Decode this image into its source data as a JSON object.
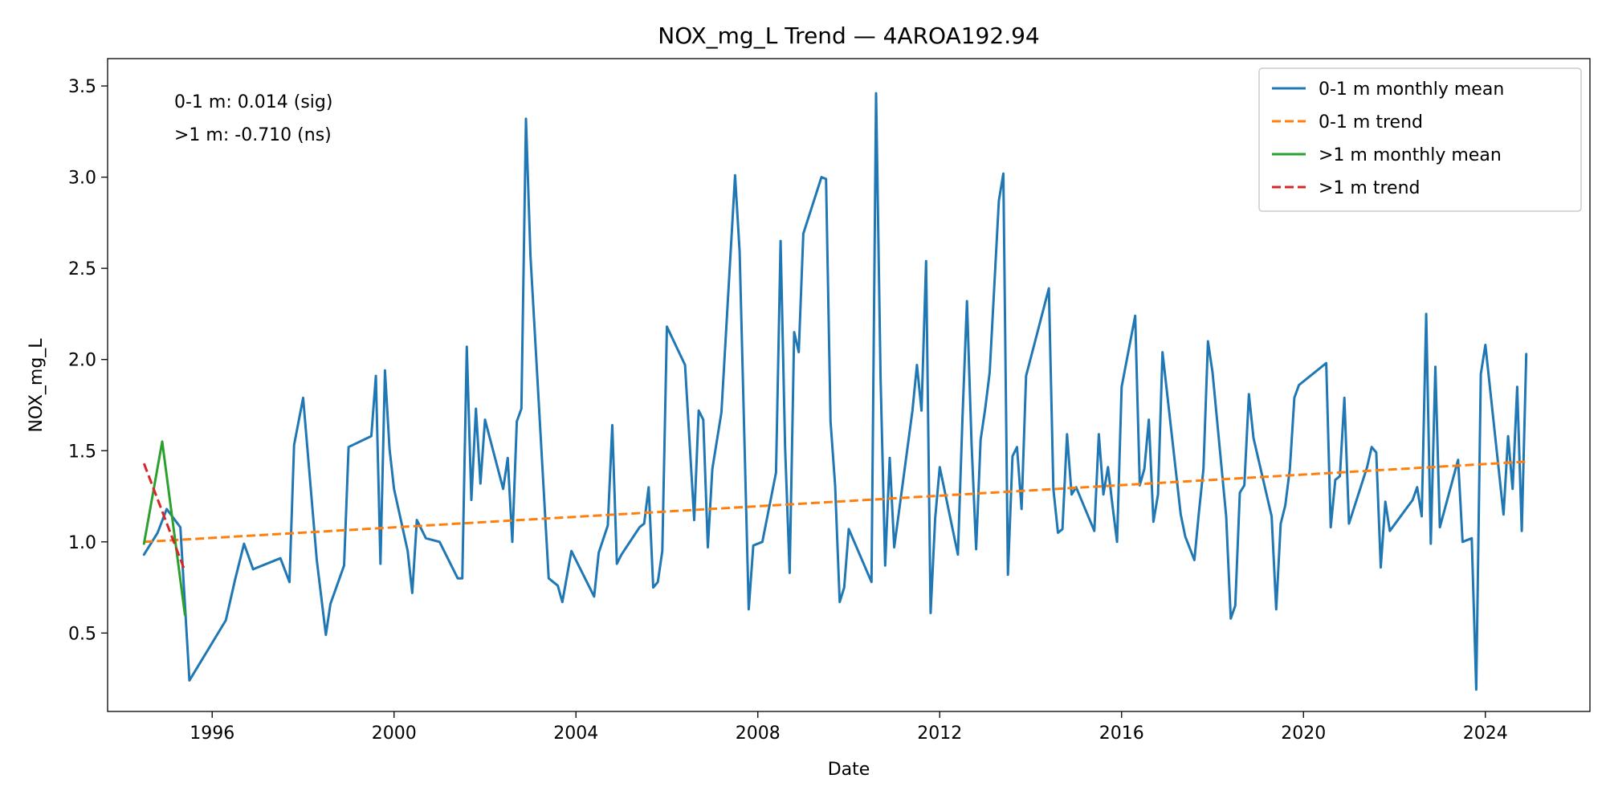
{
  "chart_data": {
    "type": "line",
    "title": "NOX_mg_L Trend — 4AROA192.94",
    "xlabel": "Date",
    "ylabel": "NOX_mg_L",
    "xlim": [
      1993.7,
      2026.3
    ],
    "ylim": [
      0.07,
      3.65
    ],
    "x_ticks": [
      1996,
      2000,
      2004,
      2008,
      2012,
      2016,
      2020,
      2024
    ],
    "y_ticks": [
      0.5,
      1.0,
      1.5,
      2.0,
      2.5,
      3.0,
      3.5
    ],
    "y_tick_labels": [
      "0.5",
      "1.0",
      "1.5",
      "2.0",
      "2.5",
      "3.0",
      "3.5"
    ],
    "grid": false,
    "legend_position": "top-right",
    "annotations": [
      "0-1 m: 0.014 (sig)",
      ">1 m: -0.710 (ns)"
    ],
    "series": [
      {
        "name": "0-1 m monthly mean",
        "color": "#1f77b4",
        "style": "solid",
        "x": [
          1994.5,
          1994.8,
          1995.0,
          1995.3,
          1995.5,
          1996.3,
          1996.5,
          1996.7,
          1996.9,
          1997.5,
          1997.7,
          1997.8,
          1998.0,
          1998.3,
          1998.5,
          1998.6,
          1998.9,
          1999.0,
          1999.5,
          1999.6,
          1999.7,
          1999.8,
          1999.9,
          2000.0,
          2000.3,
          2000.4,
          2000.5,
          2000.7,
          2001.0,
          2001.4,
          2001.5,
          2001.6,
          2001.7,
          2001.8,
          2001.9,
          2002.0,
          2002.4,
          2002.5,
          2002.6,
          2002.7,
          2002.8,
          2002.9,
          2003.0,
          2003.4,
          2003.6,
          2003.7,
          2003.9,
          2004.4,
          2004.5,
          2004.7,
          2004.8,
          2004.9,
          2005.0,
          2005.4,
          2005.5,
          2005.6,
          2005.7,
          2005.8,
          2005.9,
          2006.0,
          2006.4,
          2006.6,
          2006.7,
          2006.8,
          2006.9,
          2007.0,
          2007.2,
          2007.5,
          2007.6,
          2007.8,
          2007.9,
          2008.1,
          2008.4,
          2008.5,
          2008.6,
          2008.7,
          2008.8,
          2008.9,
          2009.0,
          2009.4,
          2009.5,
          2009.6,
          2009.7,
          2009.8,
          2009.9,
          2010.0,
          2010.5,
          2010.6,
          2010.7,
          2010.8,
          2010.9,
          2011.0,
          2011.4,
          2011.5,
          2011.6,
          2011.7,
          2011.8,
          2011.9,
          2012.0,
          2012.4,
          2012.5,
          2012.6,
          2012.7,
          2012.8,
          2012.9,
          2013.0,
          2013.1,
          2013.3,
          2013.4,
          2013.5,
          2013.6,
          2013.7,
          2013.8,
          2013.9,
          2014.4,
          2014.5,
          2014.6,
          2014.7,
          2014.8,
          2014.9,
          2015.0,
          2015.4,
          2015.5,
          2015.6,
          2015.7,
          2015.8,
          2015.9,
          2016.0,
          2016.3,
          2016.4,
          2016.5,
          2016.6,
          2016.7,
          2016.8,
          2016.9,
          2017.3,
          2017.4,
          2017.6,
          2017.7,
          2017.8,
          2017.9,
          2018.0,
          2018.3,
          2018.4,
          2018.5,
          2018.6,
          2018.7,
          2018.8,
          2018.9,
          2019.3,
          2019.4,
          2019.5,
          2019.6,
          2019.7,
          2019.8,
          2019.9,
          2020.5,
          2020.6,
          2020.7,
          2020.8,
          2020.9,
          2021.0,
          2021.4,
          2021.5,
          2021.6,
          2021.7,
          2021.8,
          2021.9,
          2022.4,
          2022.5,
          2022.6,
          2022.7,
          2022.8,
          2022.9,
          2023.0,
          2023.4,
          2023.5,
          2023.7,
          2023.8,
          2023.9,
          2024.0,
          2024.4,
          2024.5,
          2024.6,
          2024.7,
          2024.8,
          2024.9
        ],
        "y": [
          0.93,
          1.05,
          1.18,
          1.08,
          0.24,
          0.57,
          0.79,
          0.99,
          0.85,
          0.91,
          0.78,
          1.53,
          1.79,
          0.9,
          0.49,
          0.66,
          0.87,
          1.52,
          1.58,
          1.91,
          0.88,
          1.94,
          1.51,
          1.29,
          0.95,
          0.72,
          1.12,
          1.02,
          1.0,
          0.8,
          0.8,
          2.07,
          1.23,
          1.73,
          1.32,
          1.67,
          1.29,
          1.46,
          1.0,
          1.66,
          1.73,
          3.32,
          2.57,
          0.8,
          0.76,
          0.67,
          0.95,
          0.7,
          0.94,
          1.09,
          1.64,
          0.88,
          0.93,
          1.08,
          1.1,
          1.3,
          0.75,
          0.78,
          0.95,
          2.18,
          1.97,
          1.12,
          1.72,
          1.67,
          0.97,
          1.4,
          1.71,
          3.01,
          2.59,
          0.63,
          0.98,
          1.0,
          1.38,
          2.65,
          1.52,
          0.83,
          2.15,
          2.04,
          2.69,
          3.0,
          2.99,
          1.66,
          1.31,
          0.67,
          0.75,
          1.07,
          0.78,
          3.46,
          1.9,
          0.87,
          1.46,
          0.97,
          1.72,
          1.97,
          1.72,
          2.54,
          0.61,
          1.13,
          1.41,
          0.93,
          1.68,
          2.32,
          1.54,
          0.96,
          1.56,
          1.73,
          1.93,
          2.87,
          3.02,
          0.82,
          1.47,
          1.52,
          1.18,
          1.91,
          2.39,
          1.29,
          1.05,
          1.07,
          1.59,
          1.26,
          1.3,
          1.06,
          1.59,
          1.26,
          1.41,
          1.2,
          1.0,
          1.85,
          2.24,
          1.31,
          1.4,
          1.67,
          1.11,
          1.26,
          2.04,
          1.15,
          1.03,
          0.9,
          1.16,
          1.4,
          2.1,
          1.93,
          1.14,
          0.58,
          0.65,
          1.27,
          1.31,
          1.81,
          1.57,
          1.14,
          0.63,
          1.1,
          1.2,
          1.4,
          1.79,
          1.86,
          1.98,
          1.08,
          1.34,
          1.36,
          1.79,
          1.1,
          1.41,
          1.52,
          1.49,
          0.86,
          1.22,
          1.06,
          1.23,
          1.3,
          1.14,
          2.25,
          0.99,
          1.96,
          1.08,
          1.45,
          1.0,
          1.02,
          0.19,
          1.92,
          2.08,
          1.15,
          1.58,
          1.29,
          1.85,
          1.06,
          2.03
        ]
      },
      {
        "name": "0-1 m trend",
        "color": "#ff7f0e",
        "style": "dashed",
        "x": [
          1994.5,
          2024.9
        ],
        "y": [
          1.0,
          1.44
        ]
      },
      {
        "name": ">1 m monthly mean",
        "color": "#2ca02c",
        "style": "solid",
        "x": [
          1994.5,
          1994.9,
          1995.4
        ],
        "y": [
          0.99,
          1.55,
          0.6
        ]
      },
      {
        "name": ">1 m trend",
        "color": "#d62728",
        "style": "dashed",
        "x": [
          1994.5,
          1995.4
        ],
        "y": [
          1.43,
          0.84
        ]
      }
    ]
  }
}
